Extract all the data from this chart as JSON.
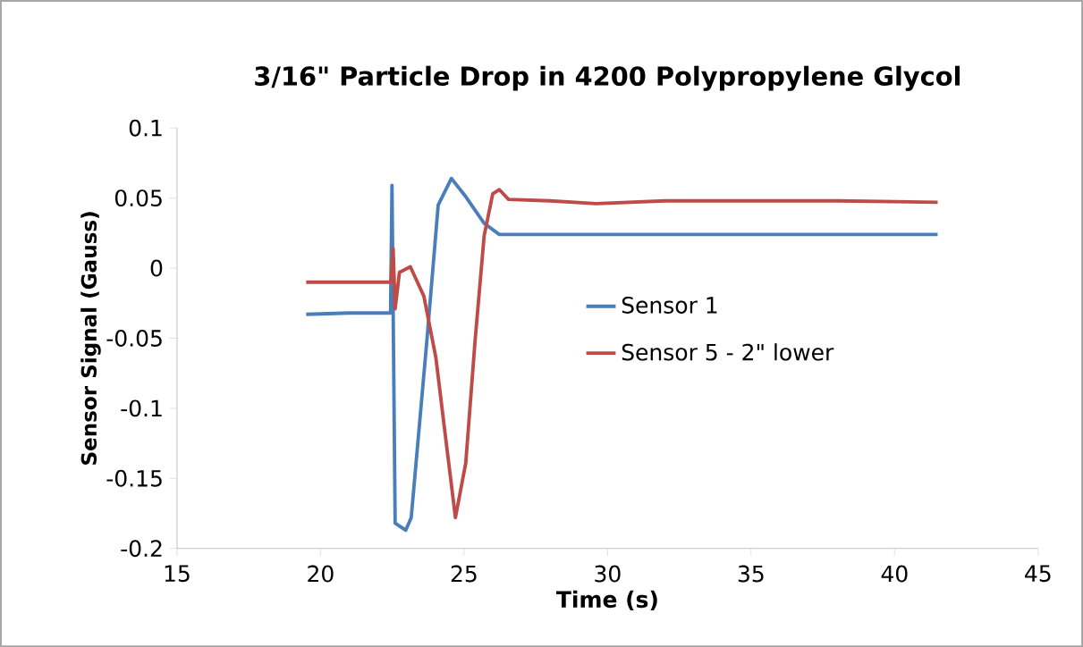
{
  "chart_data": {
    "type": "line",
    "title": "3/16\" Particle Drop in 4200 Polypropylene Glycol",
    "xlabel": "Time (s)",
    "ylabel": "Sensor Signal (Gauss)",
    "xlim": [
      15,
      45
    ],
    "xticks": [
      15,
      20,
      25,
      30,
      35,
      40,
      45
    ],
    "ylim": [
      -0.2,
      0.1
    ],
    "yticks": [
      -0.2,
      -0.15,
      -0.1,
      -0.05,
      0,
      0.05,
      0.1
    ],
    "grid": false,
    "legend": "right",
    "marker": "none",
    "line_style": "solid",
    "series": [
      {
        "name": "Sensor 1",
        "color": "#4a7ebb",
        "x": [
          19.5,
          21,
          22.44,
          22.49,
          22.6,
          22.97,
          23.16,
          23.7,
          24.1,
          24.56,
          25.06,
          25.7,
          26.23,
          28,
          30,
          33,
          36,
          39,
          41.5
        ],
        "values": [
          -0.033,
          -0.032,
          -0.032,
          0.059,
          -0.182,
          -0.187,
          -0.178,
          -0.053,
          0.045,
          0.064,
          0.051,
          0.032,
          0.024,
          0.024,
          0.024,
          0.024,
          0.024,
          0.024,
          0.024
        ]
      },
      {
        "name": "Sensor 5 - 2\" lower",
        "color": "#be4b48",
        "x": [
          19.5,
          21,
          22.45,
          22.53,
          22.6,
          22.75,
          23.13,
          23.6,
          24.02,
          24.34,
          24.7,
          25.06,
          25.38,
          25.7,
          26.0,
          26.23,
          26.55,
          28,
          29.6,
          32,
          35,
          38,
          41.5
        ],
        "values": [
          -0.01,
          -0.01,
          -0.01,
          0.014,
          -0.029,
          -0.003,
          0.001,
          -0.02,
          -0.064,
          -0.118,
          -0.178,
          -0.139,
          -0.053,
          0.023,
          0.053,
          0.056,
          0.049,
          0.048,
          0.046,
          0.048,
          0.048,
          0.048,
          0.047
        ]
      }
    ]
  }
}
